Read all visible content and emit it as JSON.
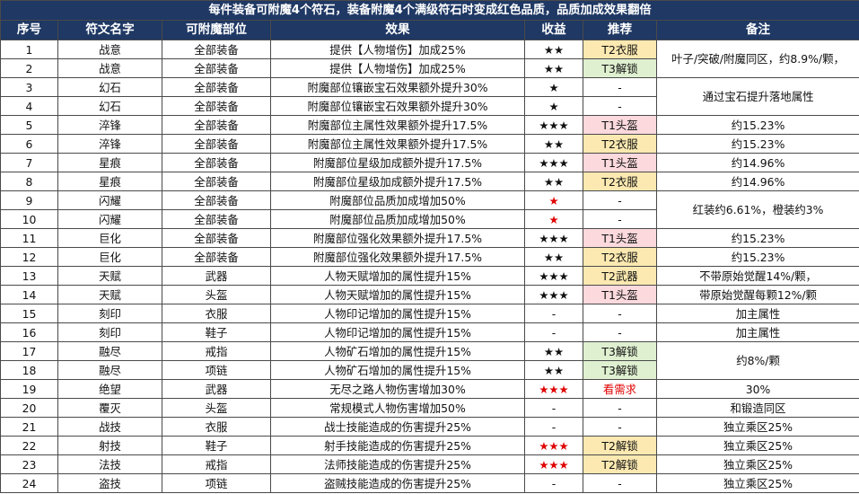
{
  "title": "每件装备可附魔4个符石，装备附魔4个满级符石时变成红色品质，品质加成效果翻倍",
  "headers": {
    "no": "序号",
    "name": "符文名字",
    "slot": "可附魔部位",
    "effect": "效果",
    "gain": "收益",
    "rec": "推荐",
    "note": "备注"
  },
  "colors": {
    "header_bg": "#1f3864",
    "header_text": "#ffffff",
    "star_red": "#e00000",
    "rec_pink": "#fbd9dd",
    "rec_yellow": "#fbe9b1",
    "rec_green": "#dff0d0"
  },
  "rows": [
    {
      "no": "1",
      "name": "战意",
      "slot": "全部装备",
      "effect": "提供【人物增伤】加成25%",
      "gain": "★★",
      "rec": "T2衣服",
      "rec_style": "yellow"
    },
    {
      "no": "2",
      "name": "战意",
      "slot": "全部装备",
      "effect": "提供【人物增伤】加成25%",
      "gain": "★★",
      "rec": "T3解锁",
      "rec_style": "green"
    },
    {
      "no": "3",
      "name": "幻石",
      "slot": "全部装备",
      "effect": "附魔部位镶嵌宝石效果额外提升30%",
      "gain": "★",
      "rec": "-",
      "rec_style": ""
    },
    {
      "no": "4",
      "name": "幻石",
      "slot": "全部装备",
      "effect": "附魔部位镶嵌宝石效果额外提升30%",
      "gain": "★",
      "rec": "-",
      "rec_style": ""
    },
    {
      "no": "5",
      "name": "淬锋",
      "slot": "全部装备",
      "effect": "附魔部位主属性效果额外提升17.5%",
      "gain": "★★★",
      "rec": "T1头盔",
      "rec_style": "pink"
    },
    {
      "no": "6",
      "name": "淬锋",
      "slot": "全部装备",
      "effect": "附魔部位主属性效果额外提升17.5%",
      "gain": "★★",
      "rec": "T2衣服",
      "rec_style": "yellow"
    },
    {
      "no": "7",
      "name": "星痕",
      "slot": "全部装备",
      "effect": "附魔部位星级加成额外提升17.5%",
      "gain": "★★★",
      "rec": "T1头盔",
      "rec_style": "pink"
    },
    {
      "no": "8",
      "name": "星痕",
      "slot": "全部装备",
      "effect": "附魔部位星级加成额外提升17.5%",
      "gain": "★★",
      "rec": "T2衣服",
      "rec_style": "yellow"
    },
    {
      "no": "9",
      "name": "闪耀",
      "slot": "全部装备",
      "effect": "附魔部位品质加成增加50%",
      "gain": "★",
      "gain_red": true,
      "rec": "-",
      "rec_style": ""
    },
    {
      "no": "10",
      "name": "闪耀",
      "slot": "全部装备",
      "effect": "附魔部位品质加成增加50%",
      "gain": "★",
      "gain_red": true,
      "rec": "-",
      "rec_style": ""
    },
    {
      "no": "11",
      "name": "巨化",
      "slot": "全部装备",
      "effect": "附魔部位强化效果额外提升17.5%",
      "gain": "★★★",
      "rec": "T1头盔",
      "rec_style": "pink"
    },
    {
      "no": "12",
      "name": "巨化",
      "slot": "全部装备",
      "effect": "附魔部位强化效果额外提升17.5%",
      "gain": "★★",
      "rec": "T2衣服",
      "rec_style": "yellow"
    },
    {
      "no": "13",
      "name": "天赋",
      "slot": "武器",
      "effect": "人物天赋增加的属性提升15%",
      "gain": "★★★",
      "rec": "T2武器",
      "rec_style": "yellow"
    },
    {
      "no": "14",
      "name": "天赋",
      "slot": "头盔",
      "effect": "人物天赋增加的属性提升15%",
      "gain": "★★★",
      "rec": "T1头盔",
      "rec_style": "pink"
    },
    {
      "no": "15",
      "name": "刻印",
      "slot": "衣服",
      "effect": "人物印记增加的属性提升15%",
      "gain": "-",
      "rec": "-",
      "rec_style": ""
    },
    {
      "no": "16",
      "name": "刻印",
      "slot": "鞋子",
      "effect": "人物印记增加的属性提升15%",
      "gain": "-",
      "rec": "-",
      "rec_style": ""
    },
    {
      "no": "17",
      "name": "融尽",
      "slot": "戒指",
      "effect": "人物矿石增加的属性提升15%",
      "gain": "★★",
      "rec": "T3解锁",
      "rec_style": "green"
    },
    {
      "no": "18",
      "name": "融尽",
      "slot": "项链",
      "effect": "人物矿石增加的属性提升15%",
      "gain": "★★",
      "rec": "T3解锁",
      "rec_style": "green"
    },
    {
      "no": "19",
      "name": "绝望",
      "slot": "武器",
      "effect": "无尽之路人物伤害增加30%",
      "gain": "★★★",
      "gain_red": true,
      "rec": "看需求",
      "rec_style": "",
      "rec_red": true
    },
    {
      "no": "20",
      "name": "覆灭",
      "slot": "头盔",
      "effect": "常规模式人物伤害增加50%",
      "gain": "-",
      "rec": "-",
      "rec_style": ""
    },
    {
      "no": "21",
      "name": "战技",
      "slot": "衣服",
      "effect": "战士技能造成的伤害提升25%",
      "gain": "-",
      "rec": "-",
      "rec_style": ""
    },
    {
      "no": "22",
      "name": "射技",
      "slot": "鞋子",
      "effect": "射手技能造成的伤害提升25%",
      "gain": "★★★",
      "gain_red": true,
      "rec": "T2解锁",
      "rec_style": "yellow"
    },
    {
      "no": "23",
      "name": "法技",
      "slot": "戒指",
      "effect": "法师技能造成的伤害提升25%",
      "gain": "★★★",
      "gain_red": true,
      "rec": "T2解锁",
      "rec_style": "yellow"
    },
    {
      "no": "24",
      "name": "盗技",
      "slot": "项链",
      "effect": "盗贼技能造成的伤害提升25%",
      "gain": "-",
      "rec": "-",
      "rec_style": ""
    }
  ],
  "notes": {
    "n1_2": "叶子/突破/附魔同区，约8.9%/颗，",
    "n3_4": "通过宝石提升落地属性",
    "n5": "约15.23%",
    "n6": "约15.23%",
    "n7": "约14.96%",
    "n8": "约14.96%",
    "n9_10": "红装约6.61%，橙装约3%",
    "n11": "约15.23%",
    "n12": "约15.23%",
    "n13": "不带原始觉醒14%/颗，",
    "n14": "带原始觉醒每颗12%/颗",
    "n15": "加主属性",
    "n16": "加主属性",
    "n17_18": "约8%/颗",
    "n19": "30%",
    "n20": "和锻造同区",
    "n21": "独立乘区25%",
    "n22": "独立乘区25%",
    "n23": "独立乘区25%",
    "n24": "独立乘区25%"
  }
}
